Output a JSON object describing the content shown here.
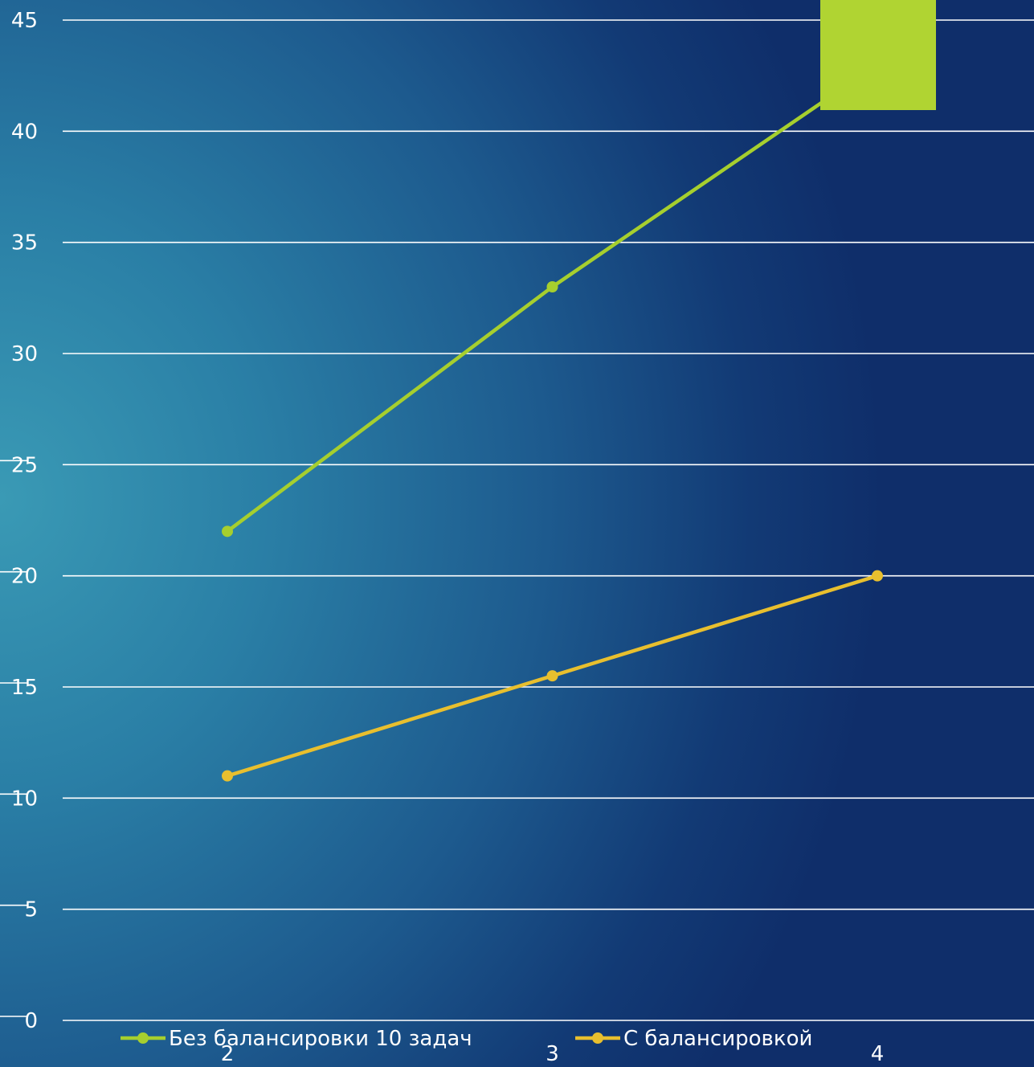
{
  "chart_data": {
    "type": "line",
    "x": [
      2,
      3,
      4
    ],
    "categories": [
      "2",
      "3",
      "4"
    ],
    "ylim": [
      0,
      45
    ],
    "yticks": [
      0,
      5,
      10,
      15,
      20,
      25,
      30,
      35,
      40,
      45
    ],
    "grid": true,
    "legend_position": "bottom",
    "series": [
      {
        "name": "Без балансировки 10 задач",
        "values": [
          22,
          33,
          43
        ],
        "color": "#a6cf2e"
      },
      {
        "name": "С балансировкой",
        "values": [
          11,
          15.5,
          20
        ],
        "color": "#e8bf2e"
      }
    ],
    "annotation_box_color": "#b0d432"
  }
}
